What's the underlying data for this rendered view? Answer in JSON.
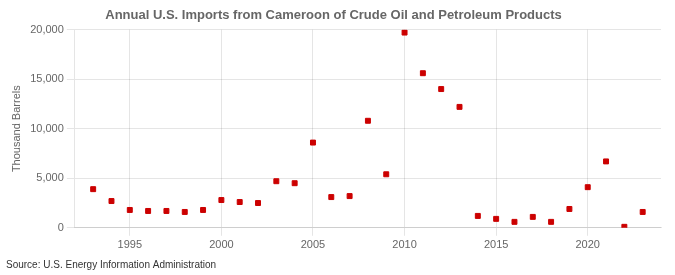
{
  "chart_data": {
    "type": "scatter",
    "title": "Annual U.S. Imports from Cameroon of Crude Oil and Petroleum Products",
    "y_label": "Thousand Barrels",
    "annotations": [
      "Source: U.S. Energy Information Administration"
    ],
    "x": [
      1993,
      1994,
      1995,
      1996,
      1997,
      1998,
      1999,
      2000,
      2001,
      2002,
      2003,
      2004,
      2005,
      2006,
      2007,
      2008,
      2009,
      2010,
      2011,
      2012,
      2013,
      2014,
      2015,
      2016,
      2017,
      2018,
      2019,
      2020,
      2021,
      2022,
      2023
    ],
    "values": [
      3900,
      2700,
      1800,
      1700,
      1700,
      1600,
      1800,
      2800,
      2600,
      2500,
      4700,
      4500,
      8600,
      3100,
      3200,
      10800,
      5400,
      19700,
      15600,
      14000,
      12200,
      1200,
      900,
      600,
      1100,
      600,
      1900,
      4100,
      6700,
      100,
      1600
    ],
    "color": "#cc0000",
    "marker": "square",
    "xlim": [
      1992,
      2024
    ],
    "xticks": [
      1995,
      2000,
      2005,
      2010,
      2015,
      2020
    ],
    "ylim": [
      0,
      20000
    ],
    "yticks": [
      0,
      {
        "value": 5000,
        "label": "5,000"
      },
      {
        "value": 10000,
        "label": "10,000"
      },
      {
        "value": 15000,
        "label": "15,000"
      },
      {
        "value": 20000,
        "label": "20,000"
      }
    ],
    "grid": true
  }
}
